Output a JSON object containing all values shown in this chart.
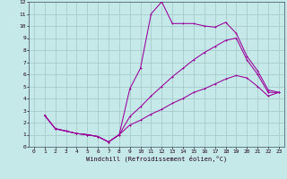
{
  "xlabel": "Windchill (Refroidissement éolien,°C)",
  "bg_color": "#c5e8e8",
  "grid_color": "#a8cccc",
  "line_color": "#990099",
  "line1_x": [
    1,
    2,
    3,
    4,
    5,
    6,
    7,
    8,
    9,
    10,
    11,
    12,
    13,
    14,
    15,
    16,
    17,
    18,
    19,
    20,
    21,
    22,
    23
  ],
  "line1_y": [
    2.6,
    1.5,
    1.3,
    1.1,
    1.0,
    0.85,
    0.4,
    1.0,
    4.8,
    6.5,
    11.0,
    12.0,
    10.2,
    10.2,
    10.2,
    10.0,
    9.9,
    10.3,
    9.4,
    7.5,
    6.3,
    4.7,
    4.5
  ],
  "line2_x": [
    1,
    2,
    3,
    4,
    5,
    6,
    7,
    8,
    9,
    10,
    11,
    12,
    13,
    14,
    15,
    16,
    17,
    18,
    19,
    20,
    21,
    22,
    23
  ],
  "line2_y": [
    2.6,
    1.5,
    1.3,
    1.1,
    1.0,
    0.85,
    0.4,
    1.0,
    2.5,
    3.3,
    4.2,
    5.0,
    5.8,
    6.5,
    7.2,
    7.8,
    8.3,
    8.8,
    9.0,
    7.2,
    6.0,
    4.5,
    4.5
  ],
  "line3_x": [
    1,
    2,
    3,
    4,
    5,
    6,
    7,
    8,
    9,
    10,
    11,
    12,
    13,
    14,
    15,
    16,
    17,
    18,
    19,
    20,
    21,
    22,
    23
  ],
  "line3_y": [
    2.6,
    1.5,
    1.3,
    1.1,
    1.0,
    0.85,
    0.4,
    1.0,
    1.8,
    2.2,
    2.7,
    3.1,
    3.6,
    4.0,
    4.5,
    4.8,
    5.2,
    5.6,
    5.9,
    5.7,
    5.0,
    4.2,
    4.5
  ],
  "xlim": [
    -0.5,
    23.5
  ],
  "ylim": [
    0,
    12
  ],
  "yticks": [
    0,
    1,
    2,
    3,
    4,
    5,
    6,
    7,
    8,
    9,
    10,
    11,
    12
  ],
  "xticks": [
    0,
    1,
    2,
    3,
    4,
    5,
    6,
    7,
    8,
    9,
    10,
    11,
    12,
    13,
    14,
    15,
    16,
    17,
    18,
    19,
    20,
    21,
    22,
    23
  ]
}
